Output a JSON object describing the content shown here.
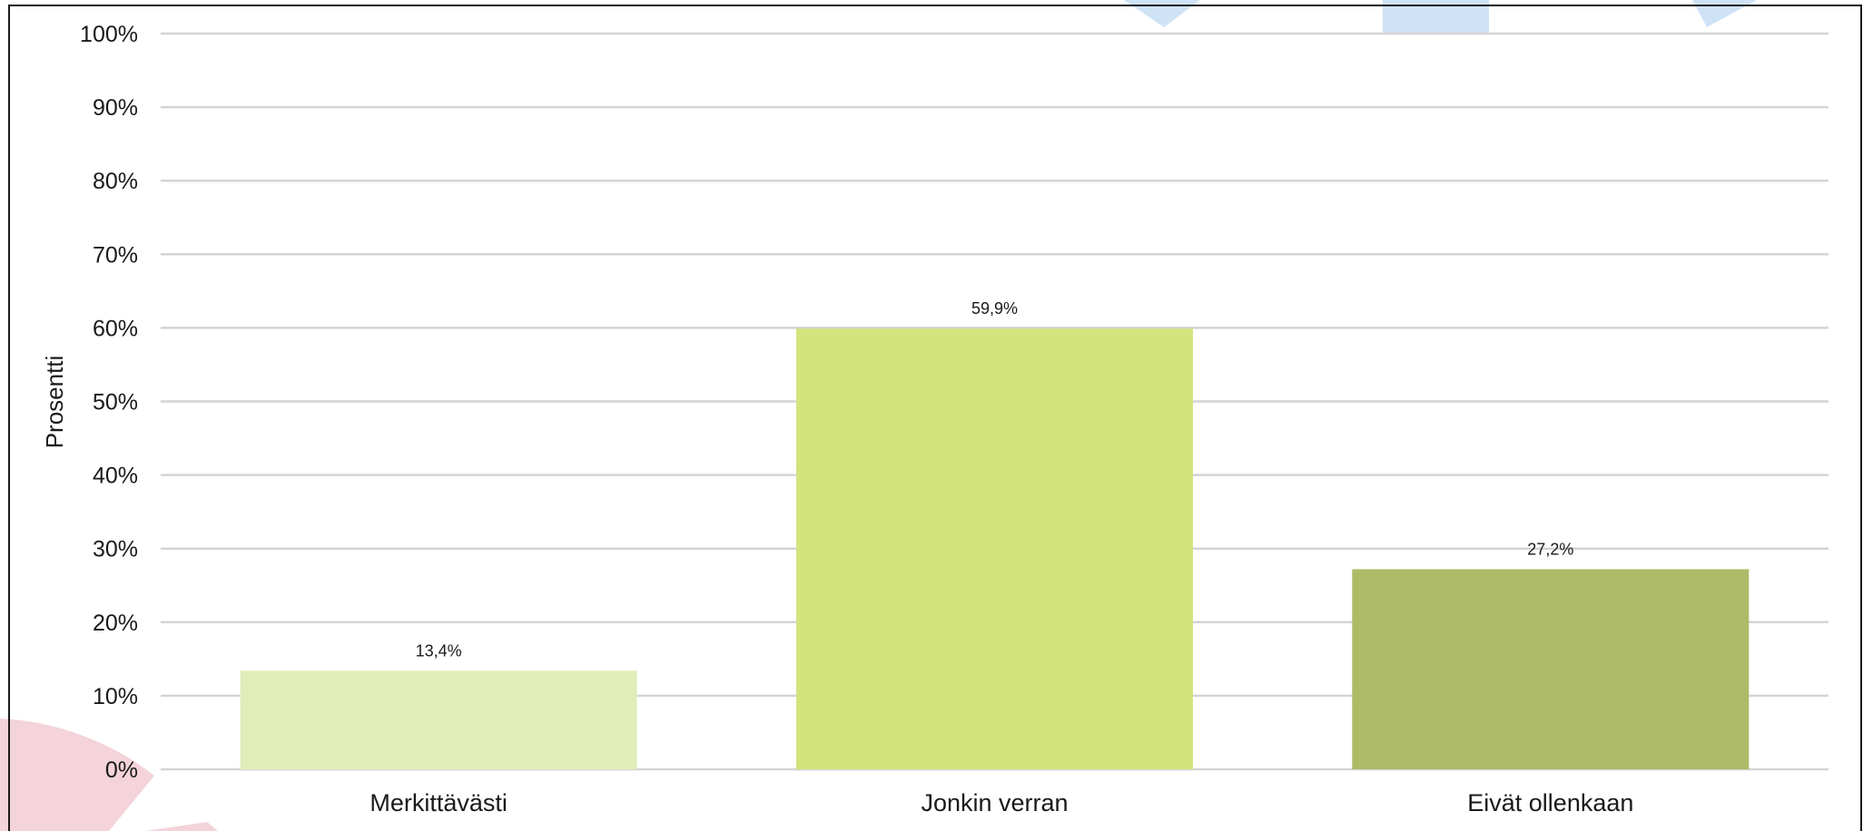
{
  "chart_data": {
    "type": "bar",
    "categories": [
      "Merkittävästi",
      "Jonkin verran",
      "Eivät ollenkaan"
    ],
    "values": [
      13.4,
      59.9,
      27.2
    ],
    "data_labels": [
      "13,4%",
      "59,9%",
      "27,2%"
    ],
    "title": "",
    "xlabel": "",
    "ylabel": "Prosentti",
    "ylim": [
      0,
      100
    ],
    "yticks": [
      0,
      10,
      20,
      30,
      40,
      50,
      60,
      70,
      80,
      90,
      100
    ],
    "ytick_labels": [
      "0%",
      "10%",
      "20%",
      "30%",
      "40%",
      "50%",
      "60%",
      "70%",
      "80%",
      "90%",
      "100%"
    ],
    "grid": true,
    "legend": "none",
    "colors": [
      "#e1edb8",
      "#d3e47d",
      "#adbb67"
    ],
    "gridline_color": "#d4d4d4",
    "frame_color": "#1a1a1a",
    "decoration_colors": {
      "pink": "#f4d3da",
      "blue": "#cfe3f6"
    }
  }
}
